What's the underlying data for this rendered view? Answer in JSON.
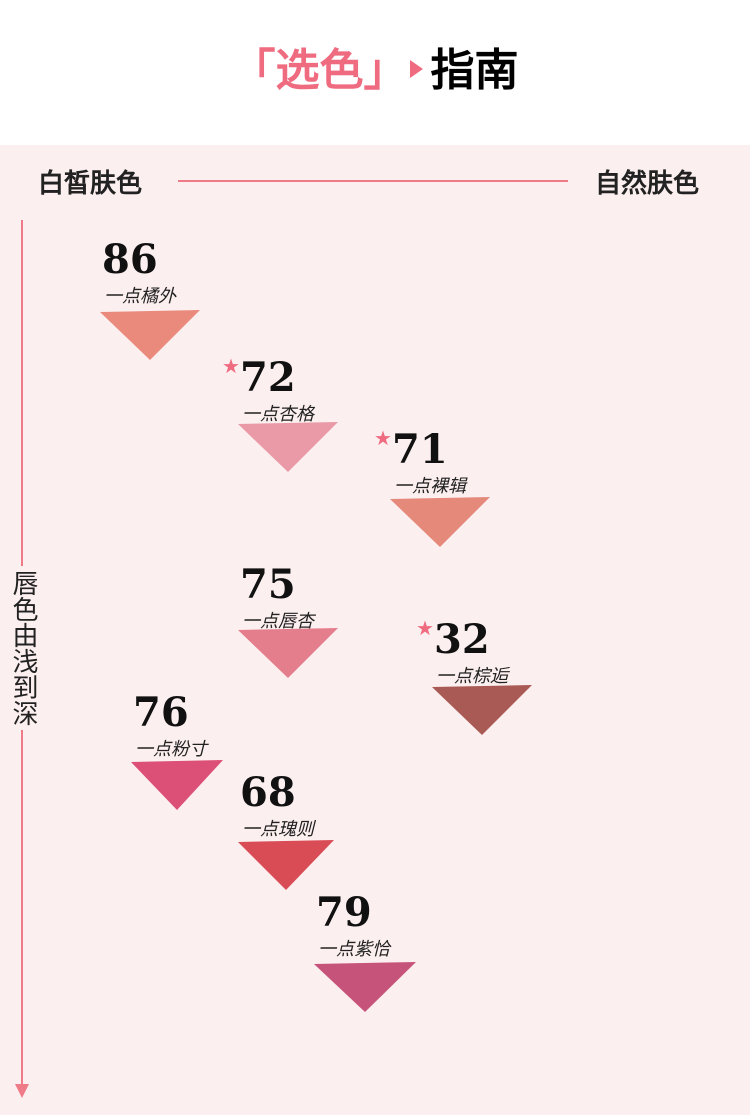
{
  "header": {
    "title_bracket": "「选色」",
    "title_main": "指南"
  },
  "axis": {
    "left_label": "白皙肤色",
    "right_label": "自然肤色",
    "vertical_label": "唇色由浅到深"
  },
  "shades": [
    {
      "code": "86",
      "name": "一点橘外",
      "starred": false,
      "color": "#e98a7c"
    },
    {
      "code": "72",
      "name": "一点杏格",
      "starred": true,
      "color": "#e99aa6"
    },
    {
      "code": "71",
      "name": "一点裸辑",
      "starred": true,
      "color": "#e5897b"
    },
    {
      "code": "75",
      "name": "一点唇杏",
      "starred": false,
      "color": "#e57e8c"
    },
    {
      "code": "32",
      "name": "一点棕逅",
      "starred": true,
      "color": "#a95a54"
    },
    {
      "code": "76",
      "name": "一点粉寸",
      "starred": false,
      "color": "#dc4f76"
    },
    {
      "code": "68",
      "name": "一点瑰则",
      "starred": false,
      "color": "#d94c55"
    },
    {
      "code": "79",
      "name": "一点紫恰",
      "starred": false,
      "color": "#c6537a"
    }
  ]
}
